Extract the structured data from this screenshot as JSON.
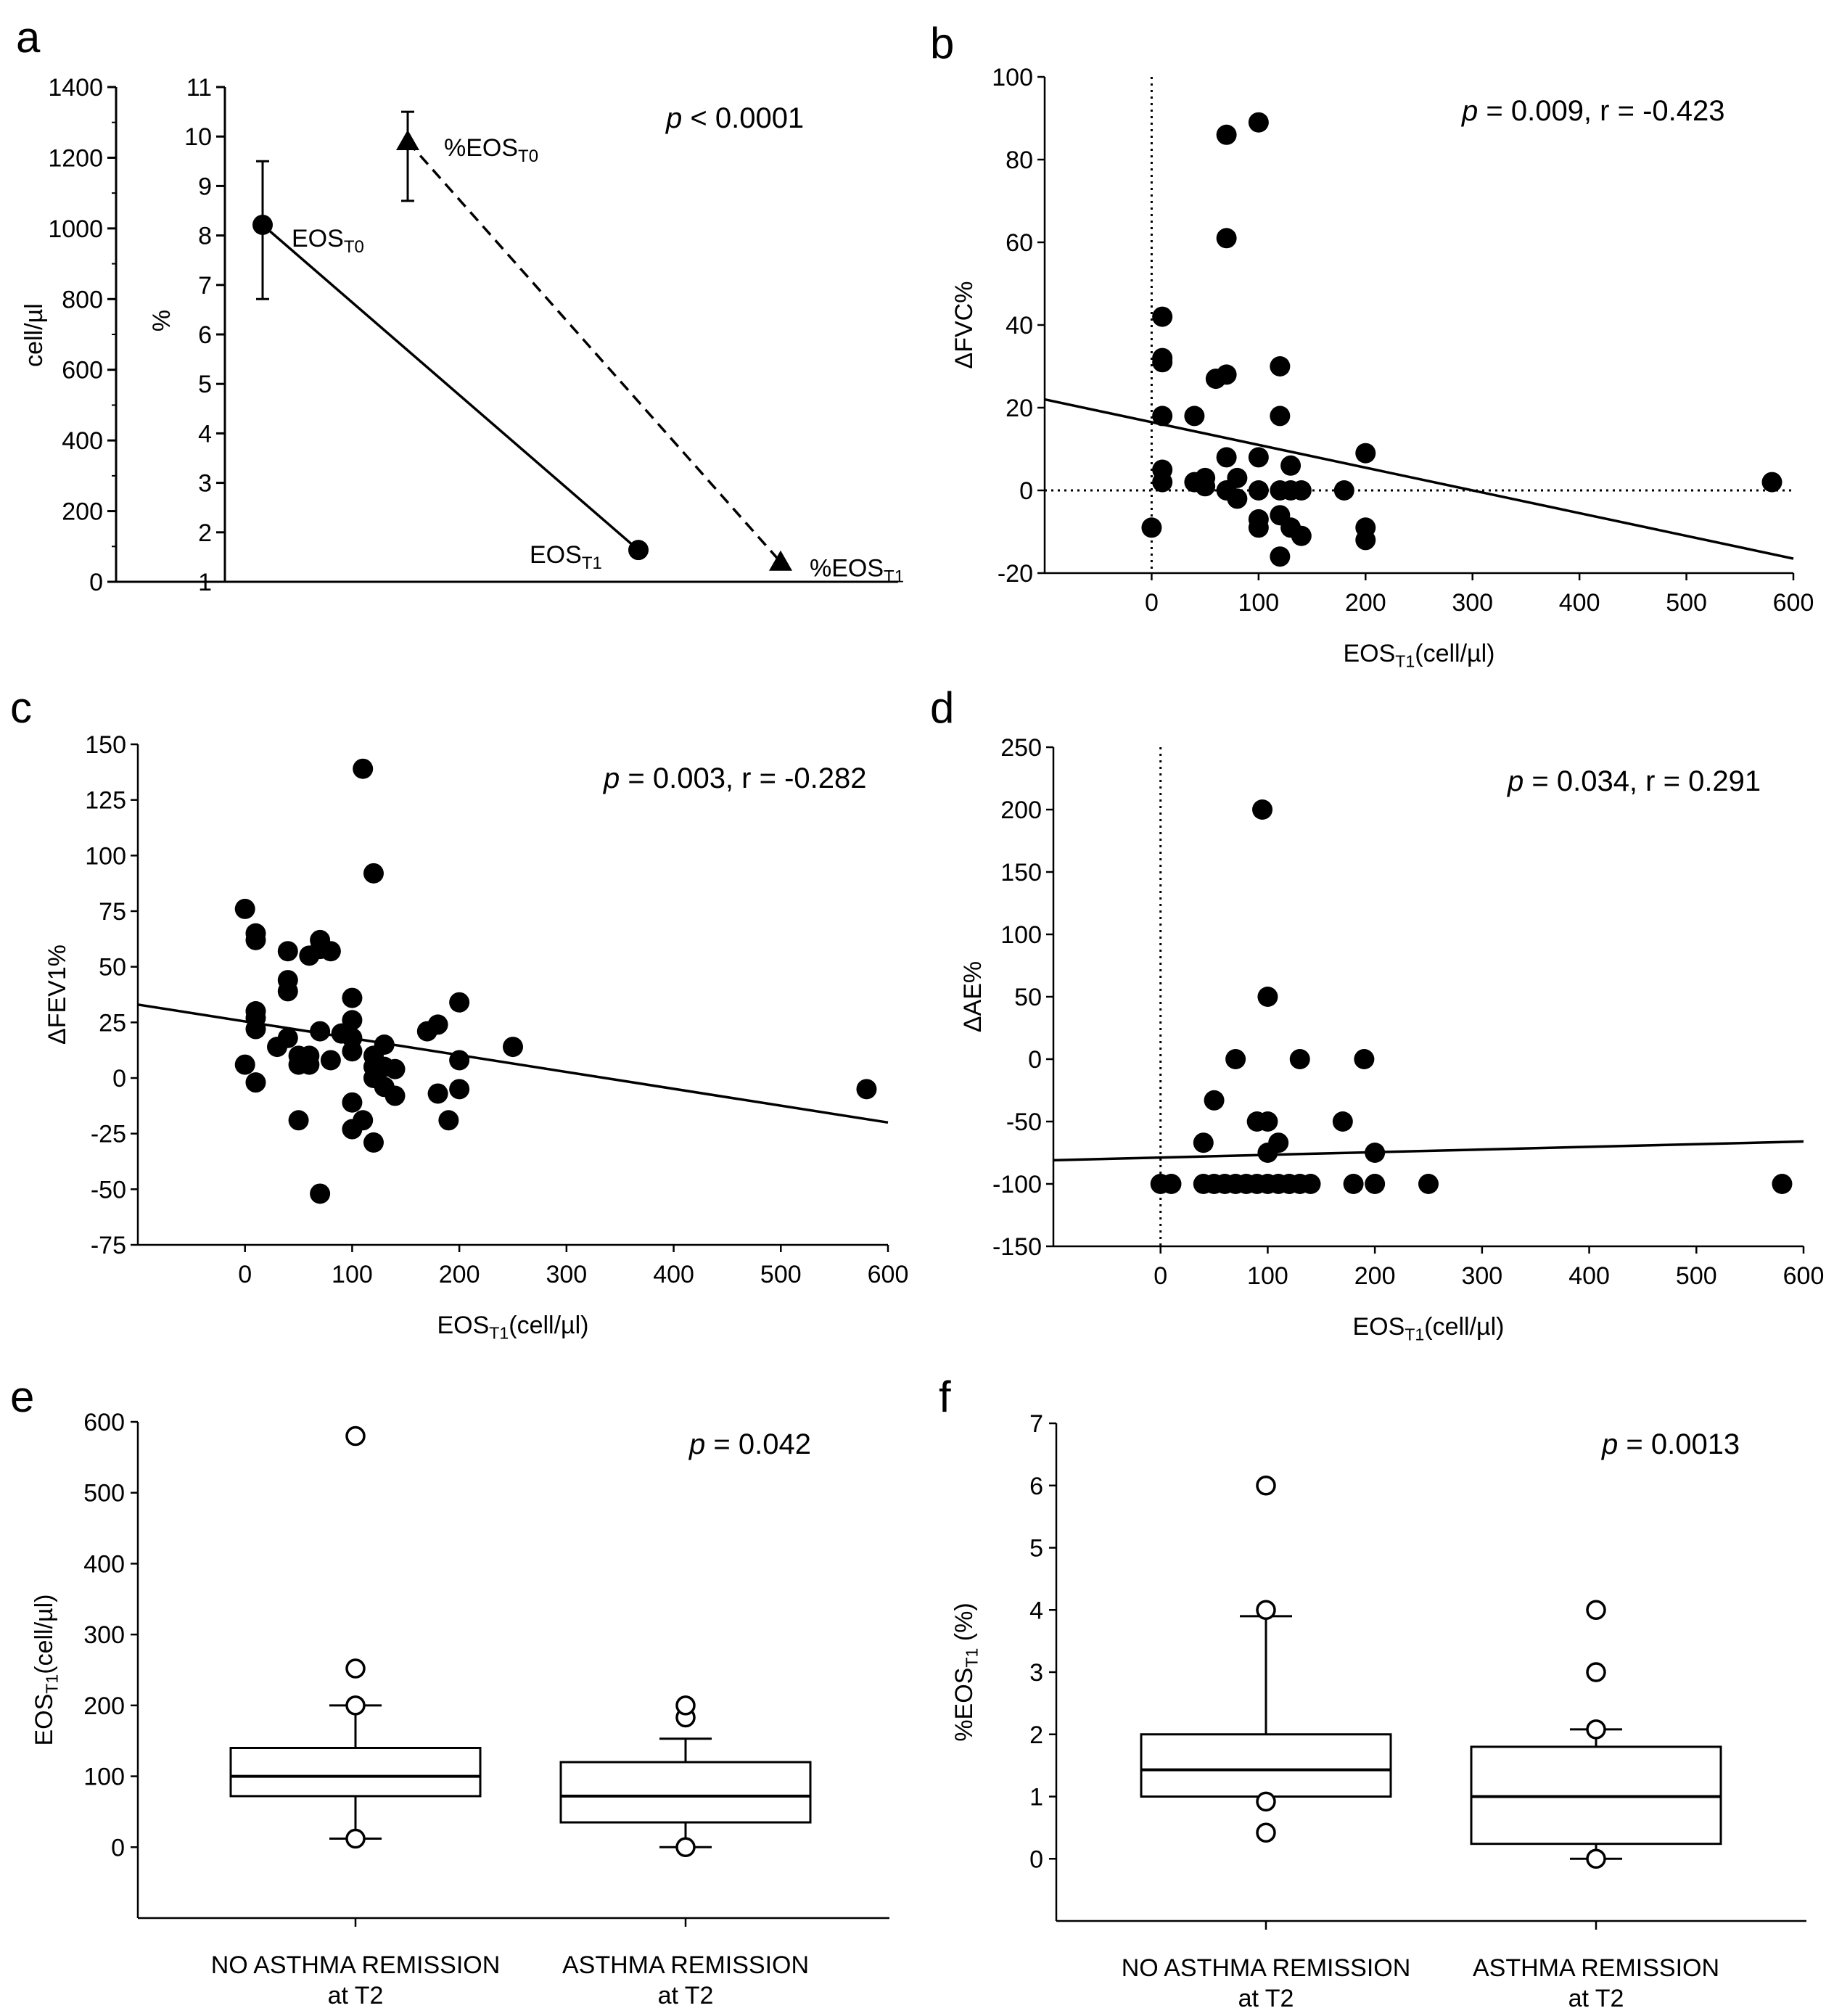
{
  "figure": {
    "panels": [
      {
        "letter": "a"
      },
      {
        "letter": "b"
      },
      {
        "letter": "c"
      },
      {
        "letter": "d"
      },
      {
        "letter": "e"
      },
      {
        "letter": "f"
      }
    ]
  },
  "chart_data": [
    {
      "panel": "a",
      "type": "line",
      "title": "",
      "annotation": {
        "italic": "p",
        "rest": " < 0.0001"
      },
      "left_axis": {
        "label": "cell/µl",
        "range": [
          0,
          1400
        ],
        "ticks": [
          0,
          200,
          400,
          600,
          800,
          1000,
          1200,
          1400
        ]
      },
      "inner_axis": {
        "label": "%",
        "range": [
          1,
          11
        ],
        "ticks": [
          1,
          2,
          3,
          4,
          5,
          6,
          7,
          8,
          9,
          10,
          11
        ]
      },
      "series": [
        {
          "name": "EOS",
          "axis": "cell/µl",
          "style": "solid",
          "marker": "circle",
          "points": [
            {
              "label": "EOS",
              "sub": "T0",
              "value": 1010,
              "error": [
                800,
                1190
              ]
            },
            {
              "label": "EOS",
              "sub": "T1",
              "value": 90,
              "error": null
            }
          ]
        },
        {
          "name": "%EOS",
          "axis": "%",
          "style": "dashed",
          "marker": "triangle",
          "points": [
            {
              "label": "%EOS",
              "sub": "T0",
              "value": 9.9,
              "error": [
                8.7,
                10.5
              ]
            },
            {
              "label": "%EOS",
              "sub": "T1",
              "value": 1.4,
              "error": null
            }
          ]
        }
      ]
    },
    {
      "panel": "b",
      "type": "scatter",
      "annotation": {
        "italic": "p",
        "rest": " = 0.009, r = -0.423"
      },
      "xlabel": {
        "main": "EOS",
        "sub": "T1",
        "rest": "(cell/µl)"
      },
      "ylabel": "ΔFVC%",
      "xlim": [
        -100,
        600
      ],
      "ylim": [
        -20,
        100
      ],
      "xticks": [
        0,
        100,
        200,
        300,
        400,
        500,
        600
      ],
      "yticks": [
        -20,
        0,
        20,
        40,
        60,
        80,
        100
      ],
      "ref_lines": {
        "x": 0,
        "y": 0
      },
      "fit": {
        "x": [
          -100,
          600
        ],
        "y": [
          22,
          -16.5
        ]
      },
      "points": [
        [
          0,
          -9
        ],
        [
          10,
          42
        ],
        [
          10,
          32
        ],
        [
          10,
          31
        ],
        [
          10,
          18
        ],
        [
          10,
          5
        ],
        [
          10,
          2
        ],
        [
          40,
          18
        ],
        [
          40,
          2
        ],
        [
          50,
          3
        ],
        [
          50,
          1
        ],
        [
          60,
          27
        ],
        [
          70,
          28
        ],
        [
          70,
          61
        ],
        [
          70,
          86
        ],
        [
          70,
          8
        ],
        [
          70,
          0
        ],
        [
          80,
          3
        ],
        [
          80,
          -2
        ],
        [
          100,
          89
        ],
        [
          100,
          8
        ],
        [
          100,
          0
        ],
        [
          100,
          -7
        ],
        [
          100,
          -9
        ],
        [
          120,
          30
        ],
        [
          120,
          18
        ],
        [
          120,
          0
        ],
        [
          120,
          -6
        ],
        [
          120,
          -16
        ],
        [
          130,
          6
        ],
        [
          130,
          0
        ],
        [
          130,
          -9
        ],
        [
          140,
          0
        ],
        [
          140,
          -11
        ],
        [
          180,
          0
        ],
        [
          200,
          9
        ],
        [
          200,
          -9
        ],
        [
          200,
          -12
        ],
        [
          580,
          2
        ]
      ]
    },
    {
      "panel": "c",
      "type": "scatter",
      "annotation": {
        "italic": "p",
        "rest": " = 0.003, r = -0.282"
      },
      "xlabel": {
        "main": "EOS",
        "sub": "T1",
        "rest": "(cell/µl)"
      },
      "ylabel": "ΔFEV1%",
      "xlim": [
        -100,
        600
      ],
      "ylim": [
        -75,
        150
      ],
      "xticks": [
        0,
        100,
        200,
        300,
        400,
        500,
        600
      ],
      "yticks": [
        -75,
        -50,
        -25,
        0,
        25,
        50,
        75,
        100,
        125,
        150
      ],
      "fit": {
        "x": [
          -100,
          600
        ],
        "y": [
          33,
          -20
        ]
      },
      "points": [
        [
          0,
          76
        ],
        [
          0,
          6
        ],
        [
          10,
          65
        ],
        [
          10,
          62
        ],
        [
          10,
          30
        ],
        [
          10,
          27
        ],
        [
          10,
          22
        ],
        [
          10,
          -2
        ],
        [
          30,
          14
        ],
        [
          40,
          57
        ],
        [
          40,
          44
        ],
        [
          40,
          39
        ],
        [
          40,
          18
        ],
        [
          50,
          10
        ],
        [
          50,
          6
        ],
        [
          50,
          -19
        ],
        [
          60,
          55
        ],
        [
          60,
          10
        ],
        [
          60,
          6
        ],
        [
          70,
          62
        ],
        [
          70,
          58
        ],
        [
          70,
          21
        ],
        [
          70,
          -52
        ],
        [
          80,
          57
        ],
        [
          80,
          8
        ],
        [
          90,
          20
        ],
        [
          100,
          36
        ],
        [
          100,
          26
        ],
        [
          100,
          18
        ],
        [
          100,
          12
        ],
        [
          100,
          -11
        ],
        [
          100,
          -23
        ],
        [
          110,
          139
        ],
        [
          110,
          -19
        ],
        [
          120,
          92
        ],
        [
          120,
          10
        ],
        [
          120,
          5
        ],
        [
          120,
          0
        ],
        [
          120,
          -29
        ],
        [
          130,
          15
        ],
        [
          130,
          5
        ],
        [
          130,
          -4
        ],
        [
          140,
          -8
        ],
        [
          140,
          4
        ],
        [
          170,
          21
        ],
        [
          180,
          24
        ],
        [
          180,
          -7
        ],
        [
          190,
          -19
        ],
        [
          200,
          34
        ],
        [
          200,
          8
        ],
        [
          200,
          -5
        ],
        [
          250,
          14
        ],
        [
          580,
          -5
        ]
      ]
    },
    {
      "panel": "d",
      "type": "scatter",
      "annotation": {
        "italic": "p",
        "rest": " = 0.034, r = 0.291"
      },
      "xlabel": {
        "main": "EOS",
        "sub": "T1",
        "rest": "(cell/µl)"
      },
      "ylabel": "ΔAE%",
      "xlim": [
        -100,
        600
      ],
      "ylim": [
        -150,
        250
      ],
      "xticks": [
        0,
        100,
        200,
        300,
        400,
        500,
        600
      ],
      "yticks": [
        -150,
        -100,
        -50,
        0,
        50,
        100,
        150,
        200,
        250
      ],
      "ref_lines": {
        "x": 0
      },
      "fit": {
        "x": [
          -100,
          600
        ],
        "y": [
          -81,
          -66
        ]
      },
      "points": [
        [
          0,
          -100
        ],
        [
          10,
          -100
        ],
        [
          40,
          -67
        ],
        [
          40,
          -100
        ],
        [
          50,
          -33
        ],
        [
          50,
          -100
        ],
        [
          60,
          -100
        ],
        [
          70,
          0
        ],
        [
          70,
          -100
        ],
        [
          80,
          -100
        ],
        [
          90,
          -50
        ],
        [
          90,
          -100
        ],
        [
          95,
          200
        ],
        [
          100,
          50
        ],
        [
          100,
          -50
        ],
        [
          100,
          -75
        ],
        [
          100,
          -100
        ],
        [
          110,
          -67
        ],
        [
          110,
          -100
        ],
        [
          120,
          -100
        ],
        [
          130,
          0
        ],
        [
          130,
          -100
        ],
        [
          140,
          -100
        ],
        [
          170,
          -50
        ],
        [
          180,
          -100
        ],
        [
          190,
          0
        ],
        [
          200,
          -75
        ],
        [
          200,
          -100
        ],
        [
          250,
          -100
        ],
        [
          580,
          -100
        ]
      ]
    },
    {
      "panel": "e",
      "type": "box",
      "annotation": {
        "italic": "p",
        "rest": " = 0.042"
      },
      "ylabel": {
        "main": "EOS",
        "sub": "T1",
        "rest": "(cell/µl)"
      },
      "ylim": [
        -100,
        600
      ],
      "yticks": [
        0,
        100,
        200,
        300,
        400,
        500,
        600
      ],
      "groups": [
        {
          "label1": "NO ASTHMA REMISSION",
          "label2": "at T2",
          "whisker_low": 12,
          "q1": 72,
          "median": 100,
          "q3": 140,
          "whisker_high": 200,
          "outliers": [
            12,
            200,
            252,
            580
          ]
        },
        {
          "label1": "ASTHMA REMISSION",
          "label2": "at T2",
          "whisker_low": 0,
          "q1": 35,
          "median": 72,
          "q3": 120,
          "whisker_high": 153,
          "outliers": [
            0,
            183,
            200
          ]
        }
      ]
    },
    {
      "panel": "f",
      "type": "box",
      "annotation": {
        "italic": "p",
        "rest": " = 0.0013"
      },
      "ylabel": {
        "main": "%EOS",
        "sub": "T1",
        "rest": " (%)"
      },
      "ylim": [
        -1,
        7
      ],
      "yticks": [
        0,
        1,
        2,
        3,
        4,
        5,
        6,
        7
      ],
      "groups": [
        {
          "label1": "NO ASTHMA REMISSION",
          "label2": "at T2",
          "whisker_low": 1.0,
          "q1": 1.0,
          "median": 1.43,
          "q3": 2.0,
          "whisker_high": 3.9,
          "outliers": [
            0.42,
            0.92,
            4.0,
            6.0
          ]
        },
        {
          "label1": "ASTHMA REMISSION",
          "label2": "at T2",
          "whisker_low": 0.0,
          "q1": 0.24,
          "median": 1.0,
          "q3": 1.8,
          "whisker_high": 2.08,
          "outliers": [
            0.0,
            2.08,
            3.0,
            4.0
          ]
        }
      ]
    }
  ]
}
